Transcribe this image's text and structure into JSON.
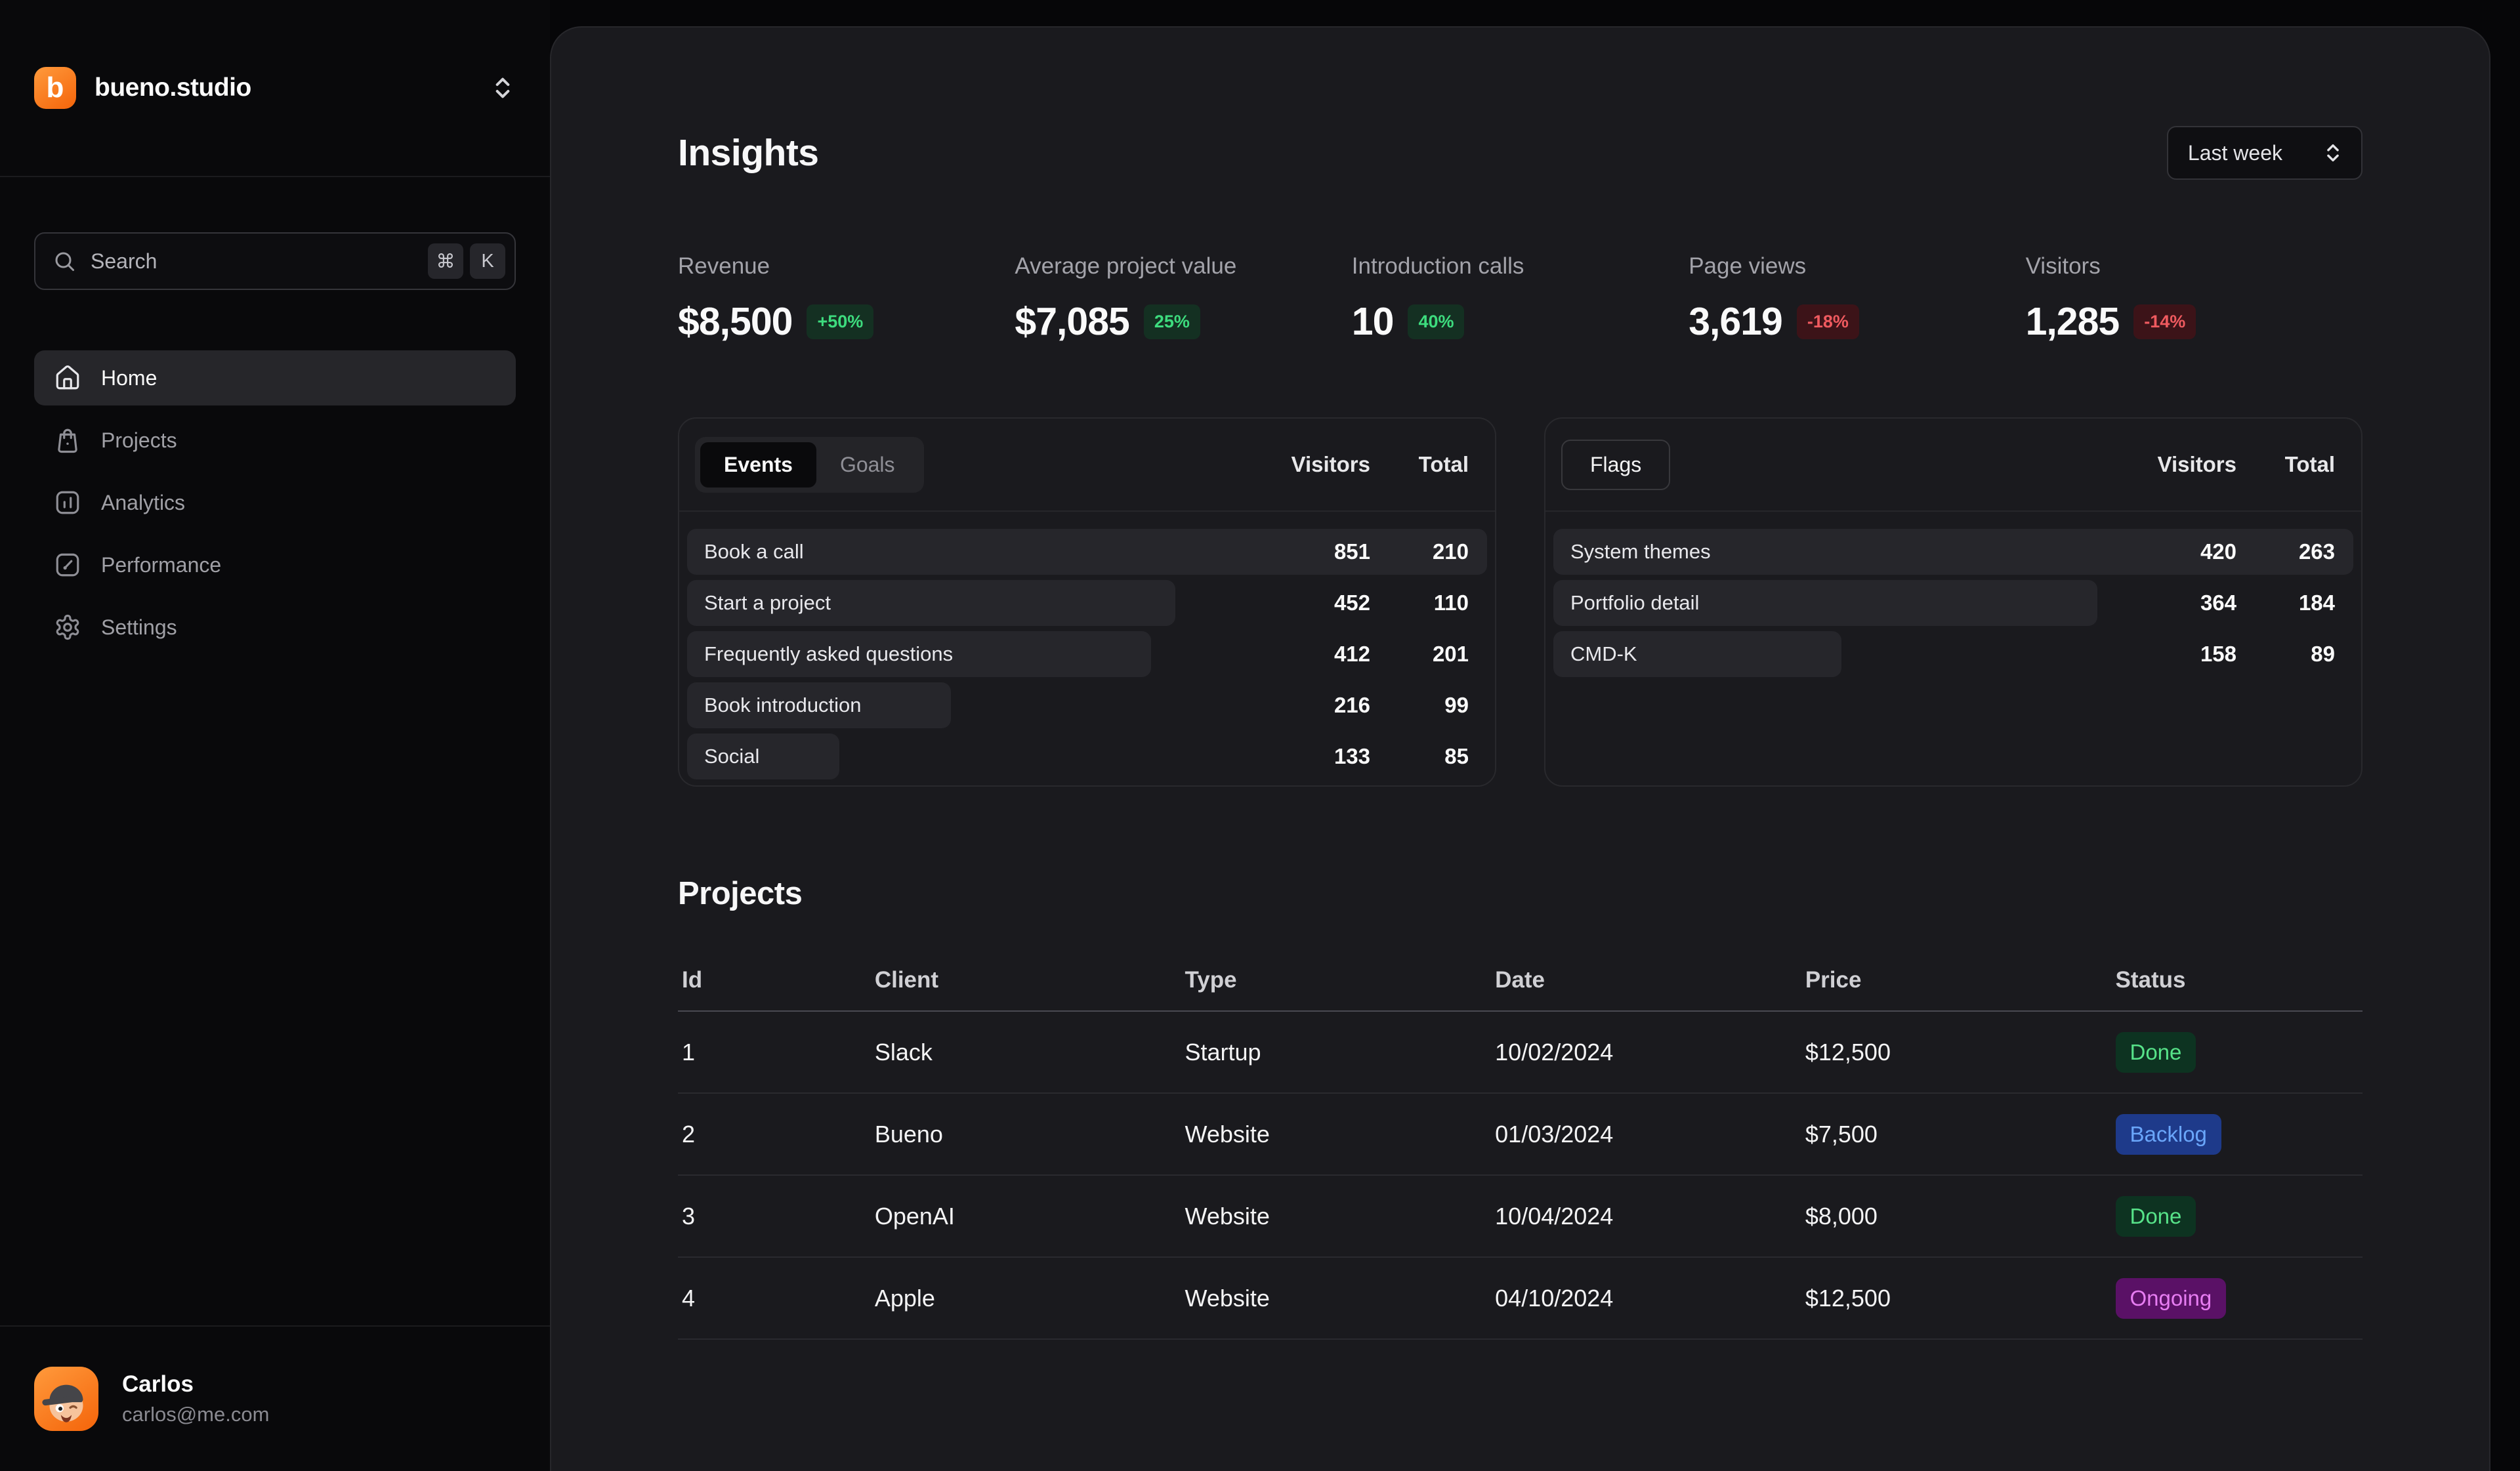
{
  "sidebar": {
    "brand": {
      "name": "bueno.studio",
      "logo_letter": "b"
    },
    "search": {
      "placeholder": "Search",
      "shortcut_keys": [
        "⌘",
        "K"
      ]
    },
    "nav": [
      {
        "label": "Home",
        "icon": "home",
        "active": true
      },
      {
        "label": "Projects",
        "icon": "bag",
        "active": false
      },
      {
        "label": "Analytics",
        "icon": "analytics",
        "active": false
      },
      {
        "label": "Performance",
        "icon": "performance",
        "active": false
      },
      {
        "label": "Settings",
        "icon": "gear",
        "active": false
      }
    ],
    "user": {
      "name": "Carlos",
      "email": "carlos@me.com"
    }
  },
  "main": {
    "title": "Insights",
    "period_select": {
      "value": "Last week"
    },
    "kpis": [
      {
        "label": "Revenue",
        "value": "$8,500",
        "delta": "+50%",
        "trend": "up"
      },
      {
        "label": "Average project value",
        "value": "$7,085",
        "delta": "25%",
        "trend": "up"
      },
      {
        "label": "Introduction calls",
        "value": "10",
        "delta": "40%",
        "trend": "up"
      },
      {
        "label": "Page views",
        "value": "3,619",
        "delta": "-18%",
        "trend": "down"
      },
      {
        "label": "Visitors",
        "value": "1,285",
        "delta": "-14%",
        "trend": "down"
      }
    ],
    "events_panel": {
      "tabs": [
        {
          "label": "Events",
          "active": true
        },
        {
          "label": "Goals",
          "active": false
        }
      ],
      "columns": [
        "Visitors",
        "Total"
      ],
      "rows": [
        {
          "label": "Book a call",
          "visitors": "851",
          "total": "210",
          "bar_pct": 100
        },
        {
          "label": "Start a project",
          "visitors": "452",
          "total": "110",
          "bar_pct": 61
        },
        {
          "label": "Frequently asked questions",
          "visitors": "412",
          "total": "201",
          "bar_pct": 58
        },
        {
          "label": "Book introduction",
          "visitors": "216",
          "total": "99",
          "bar_pct": 33
        },
        {
          "label": "Social",
          "visitors": "133",
          "total": "85",
          "bar_pct": 19
        }
      ]
    },
    "flags_panel": {
      "title": "Flags",
      "columns": [
        "Visitors",
        "Total"
      ],
      "rows": [
        {
          "label": "System themes",
          "visitors": "420",
          "total": "263",
          "bar_pct": 100
        },
        {
          "label": "Portfolio detail",
          "visitors": "364",
          "total": "184",
          "bar_pct": 68
        },
        {
          "label": "CMD-K",
          "visitors": "158",
          "total": "89",
          "bar_pct": 36
        }
      ]
    },
    "projects": {
      "title": "Projects",
      "columns": [
        "Id",
        "Client",
        "Type",
        "Date",
        "Price",
        "Status"
      ],
      "rows": [
        {
          "id": "1",
          "client": "Slack",
          "type": "Startup",
          "date": "10/02/2024",
          "price": "$12,500",
          "status": "Done",
          "status_key": "done"
        },
        {
          "id": "2",
          "client": "Bueno",
          "type": "Website",
          "date": "01/03/2024",
          "price": "$7,500",
          "status": "Backlog",
          "status_key": "backlog"
        },
        {
          "id": "3",
          "client": "OpenAI",
          "type": "Website",
          "date": "10/04/2024",
          "price": "$8,000",
          "status": "Done",
          "status_key": "done"
        },
        {
          "id": "4",
          "client": "Apple",
          "type": "Website",
          "date": "04/10/2024",
          "price": "$12,500",
          "status": "Ongoing",
          "status_key": "ongoing"
        }
      ]
    }
  },
  "colors": {
    "accent_orange": "#f4640a",
    "positive_badge_bg": "#143022",
    "positive_badge_fg": "#3ddc7e",
    "negative_badge_bg": "#3c1318",
    "negative_badge_fg": "#ef5a5f",
    "status": {
      "done": {
        "bg": "#0d3321",
        "fg": "#57e389"
      },
      "backlog": {
        "bg": "#1e3a8a",
        "fg": "#6aa6fa"
      },
      "ongoing": {
        "bg": "#5a1166",
        "fg": "#e77df2"
      }
    }
  }
}
